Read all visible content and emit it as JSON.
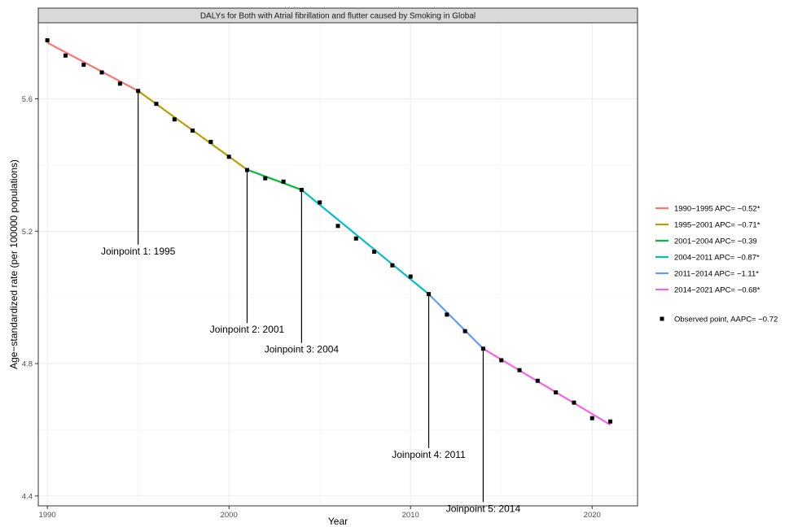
{
  "chart_data": {
    "type": "line",
    "title": "DALYs for Both with Atrial fibrillation and flutter caused by Smoking in Global",
    "xlabel": "Year",
    "ylabel": "Age−standardized rate (per 100000 populations)",
    "xlim": [
      1989.5,
      2022.5
    ],
    "ylim": [
      4.37,
      5.83
    ],
    "xticks": [
      1990,
      2000,
      2010,
      2020
    ],
    "yticks": [
      4.4,
      4.8,
      5.2,
      5.6
    ],
    "ytick_labels": [
      "4.4",
      "4.8",
      "5.2",
      "5.6"
    ],
    "grid": true,
    "legend_position": "right",
    "observed": {
      "name": "Observed point, AAPC= −0.72",
      "color": "#000000",
      "x": [
        1990,
        1991,
        1992,
        1993,
        1994,
        1995,
        1996,
        1997,
        1998,
        1999,
        2000,
        2001,
        2002,
        2003,
        2004,
        2005,
        2006,
        2007,
        2008,
        2009,
        2010,
        2011,
        2012,
        2013,
        2014,
        2015,
        2016,
        2017,
        2018,
        2019,
        2020,
        2021
      ],
      "y": [
        5.777,
        5.731,
        5.703,
        5.68,
        5.646,
        5.624,
        5.585,
        5.538,
        5.504,
        5.47,
        5.425,
        5.385,
        5.36,
        5.35,
        5.325,
        5.287,
        5.216,
        5.178,
        5.138,
        5.097,
        5.063,
        5.01,
        4.948,
        4.898,
        4.845,
        4.81,
        4.78,
        4.748,
        4.713,
        4.682,
        4.635,
        4.625
      ]
    },
    "series": [
      {
        "name": "1990−1995 APC= −0.52*",
        "color": "#F8766D",
        "x": [
          1990,
          1995
        ],
        "y": [
          5.77,
          5.624
        ]
      },
      {
        "name": "1995−2001 APC= −0.71*",
        "color": "#B79F00",
        "x": [
          1995,
          2001
        ],
        "y": [
          5.624,
          5.386
        ]
      },
      {
        "name": "2001−2004 APC= −0.39",
        "color": "#00BA38",
        "x": [
          2001,
          2004
        ],
        "y": [
          5.386,
          5.325
        ]
      },
      {
        "name": "2004−2011 APC= −0.87*",
        "color": "#00BFC4",
        "x": [
          2004,
          2011
        ],
        "y": [
          5.325,
          5.01
        ]
      },
      {
        "name": "2011−2014 APC= −1.11*",
        "color": "#619CFF",
        "x": [
          2011,
          2014
        ],
        "y": [
          5.01,
          4.845
        ]
      },
      {
        "name": "2014−2021 APC= −0.68*",
        "color": "#F564E3",
        "x": [
          2014,
          2021
        ],
        "y": [
          4.845,
          4.615
        ]
      }
    ],
    "annotations": [
      {
        "label": "Joinpoint 1: 1995",
        "x": 1995,
        "y": 5.624,
        "label_y": 5.13
      },
      {
        "label": "Joinpoint 2: 2001",
        "x": 2001,
        "y": 5.386,
        "label_y": 4.893
      },
      {
        "label": "Joinpoint 3: 2004",
        "x": 2004,
        "y": 5.325,
        "label_y": 4.833
      },
      {
        "label": "Joinpoint 4: 2011",
        "x": 2011,
        "y": 5.01,
        "label_y": 4.515
      },
      {
        "label": "Joinpoint 5: 2014",
        "x": 2014,
        "y": 4.845,
        "label_y": 4.352
      }
    ]
  }
}
